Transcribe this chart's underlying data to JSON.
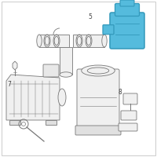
{
  "bg_color": "#ffffff",
  "border_color": "#cccccc",
  "line_color": "#777777",
  "highlight_stroke": "#3399bb",
  "highlight_fill": "#55bbdd",
  "label_color": "#444444",
  "label5": [
    0.6,
    0.93
  ],
  "label7": [
    0.05,
    0.62
  ],
  "label8": [
    0.75,
    0.42
  ]
}
